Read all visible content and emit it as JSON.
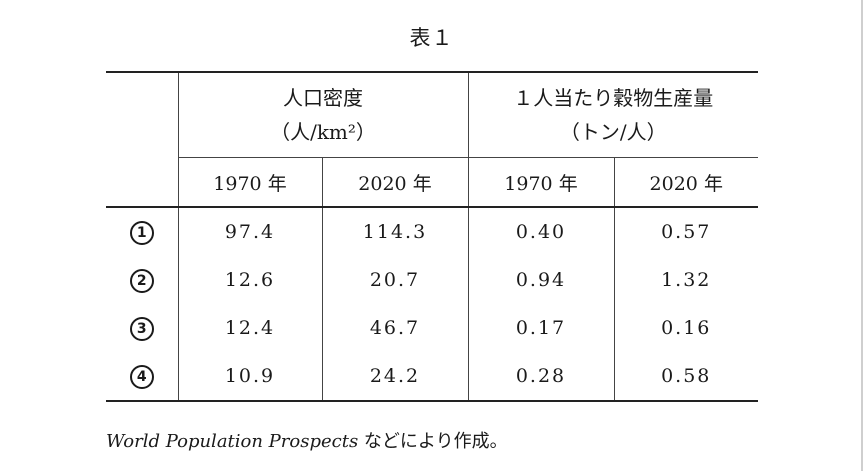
{
  "title": "表１",
  "header": {
    "density_line1": "人口密度",
    "density_line2": "（人/km²）",
    "grain_line1": "１人当たり穀物生産量",
    "grain_line2": "（トン/人）",
    "years": [
      "1970 年",
      "2020 年",
      "1970 年",
      "2020 年"
    ]
  },
  "rows": [
    {
      "label": "1",
      "values": [
        "97.4",
        "114.3",
        "0.40",
        "0.57"
      ]
    },
    {
      "label": "2",
      "values": [
        "12.6",
        "20.7",
        "0.94",
        "1.32"
      ]
    },
    {
      "label": "3",
      "values": [
        "12.4",
        "46.7",
        "0.17",
        "0.16"
      ]
    },
    {
      "label": "4",
      "values": [
        "10.9",
        "24.2",
        "0.28",
        "0.58"
      ]
    }
  ],
  "source": {
    "italic": "World Population Prospects",
    "rest": " などにより作成。"
  }
}
